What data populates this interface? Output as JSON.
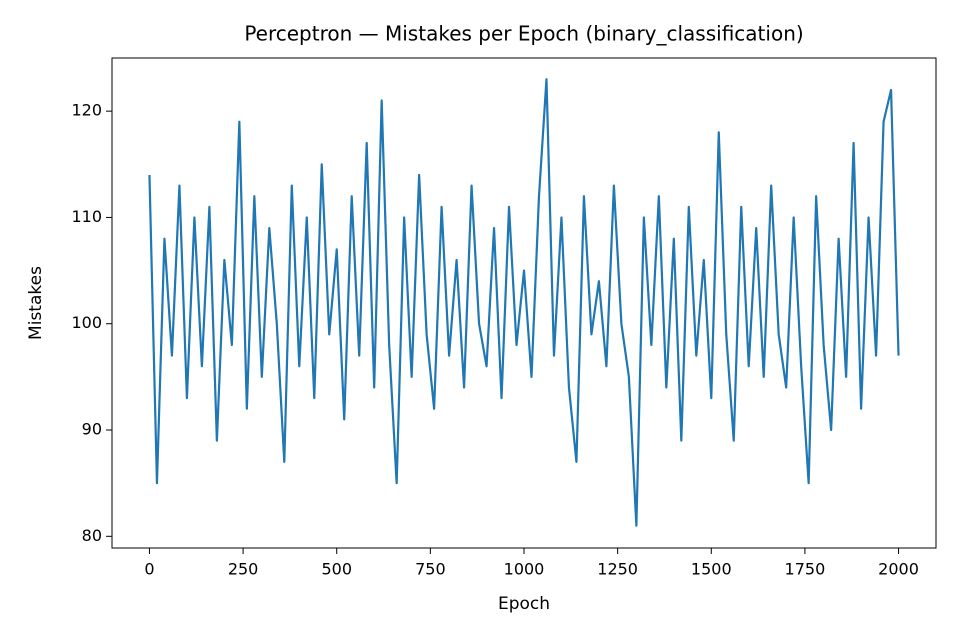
{
  "chart_data": {
    "type": "line",
    "title": "Perceptron — Mistakes per Epoch (binary_classification)",
    "xlabel": "Epoch",
    "ylabel": "Mistakes",
    "x": [
      0,
      20,
      40,
      60,
      80,
      100,
      120,
      140,
      160,
      180,
      200,
      220,
      240,
      260,
      280,
      300,
      320,
      340,
      360,
      380,
      400,
      420,
      440,
      460,
      480,
      500,
      520,
      540,
      560,
      580,
      600,
      620,
      640,
      660,
      680,
      700,
      720,
      740,
      760,
      780,
      800,
      820,
      840,
      860,
      880,
      900,
      920,
      940,
      960,
      980,
      1000,
      1020,
      1040,
      1060,
      1080,
      1100,
      1120,
      1140,
      1160,
      1180,
      1200,
      1220,
      1240,
      1260,
      1280,
      1300,
      1320,
      1340,
      1360,
      1380,
      1400,
      1420,
      1440,
      1460,
      1480,
      1500,
      1520,
      1540,
      1560,
      1580,
      1600,
      1620,
      1640,
      1660,
      1680,
      1700,
      1720,
      1740,
      1760,
      1780,
      1800,
      1820,
      1840,
      1860,
      1880,
      1900,
      1920,
      1940,
      1960,
      1980,
      2000
    ],
    "series": [
      {
        "name": "Mistakes",
        "color": "#1f77b4",
        "values": [
          114,
          85,
          108,
          97,
          113,
          93,
          110,
          96,
          111,
          89,
          106,
          98,
          119,
          92,
          112,
          95,
          109,
          100,
          87,
          113,
          96,
          110,
          93,
          115,
          99,
          107,
          91,
          112,
          97,
          117,
          94,
          121,
          98,
          85,
          110,
          95,
          114,
          99,
          92,
          111,
          97,
          106,
          94,
          113,
          100,
          96,
          109,
          93,
          111,
          98,
          105,
          95,
          112,
          123,
          97,
          110,
          94,
          87,
          112,
          99,
          104,
          96,
          113,
          100,
          95,
          81,
          110,
          98,
          112,
          94,
          108,
          89,
          111,
          97,
          106,
          93,
          118,
          99,
          89,
          111,
          96,
          109,
          95,
          113,
          99,
          94,
          110,
          96,
          85,
          112,
          98,
          90,
          108,
          95,
          117,
          92,
          110,
          97,
          119,
          122,
          97
        ]
      }
    ],
    "xlim": [
      -100,
      2100
    ],
    "ylim": [
      78.9,
      125
    ],
    "xticks": [
      0,
      250,
      500,
      750,
      1000,
      1250,
      1500,
      1750,
      2000
    ],
    "yticks": [
      80,
      90,
      100,
      110,
      120
    ]
  }
}
